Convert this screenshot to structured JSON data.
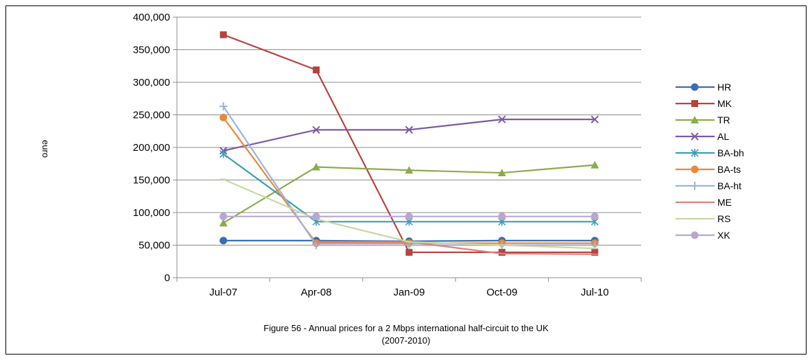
{
  "chart_data": {
    "type": "line",
    "ylabel": "euro",
    "xlabel": "",
    "ylim": [
      0,
      400000
    ],
    "ytick_step": 50000,
    "ytick_labels": [
      "0",
      "50,000",
      "100,000",
      "150,000",
      "200,000",
      "250,000",
      "300,000",
      "350,000",
      "400,000"
    ],
    "categories": [
      "Jul-07",
      "Apr-08",
      "Jan-09",
      "Oct-09",
      "Jul-10"
    ],
    "grid": "horizontal",
    "legend_position": "right",
    "series": [
      {
        "name": "HR",
        "color": "#3a6fb0",
        "marker": "circle",
        "values": [
          57000,
          57000,
          56000,
          57000,
          57000
        ]
      },
      {
        "name": "MK",
        "color": "#b5433f",
        "marker": "square",
        "values": [
          373000,
          319000,
          39000,
          39000,
          39000
        ]
      },
      {
        "name": "TR",
        "color": "#8aac4a",
        "marker": "triangle",
        "values": [
          84000,
          170000,
          165000,
          161000,
          173000
        ]
      },
      {
        "name": "AL",
        "color": "#7b5aa0",
        "marker": "x",
        "values": [
          195000,
          227000,
          227000,
          243000,
          243000
        ]
      },
      {
        "name": "BA-bh",
        "color": "#3b9db3",
        "marker": "star",
        "values": [
          190000,
          86000,
          86000,
          86000,
          86000
        ]
      },
      {
        "name": "BA-ts",
        "color": "#e8883a",
        "marker": "circle",
        "values": [
          246000,
          53000,
          53000,
          53000,
          53000
        ]
      },
      {
        "name": "BA-ht",
        "color": "#9cb3de",
        "marker": "plus",
        "values": [
          263000,
          50000,
          50000,
          50000,
          50000
        ]
      },
      {
        "name": "ME",
        "color": "#e37f7c",
        "marker": "dash",
        "values": [
          null,
          55000,
          55000,
          37000,
          36000
        ]
      },
      {
        "name": "RS",
        "color": "#c6d9a1",
        "marker": "dash",
        "values": [
          151000,
          90000,
          55000,
          50000,
          45000
        ]
      },
      {
        "name": "XK",
        "color": "#b9a7d2",
        "marker": "circle",
        "values": [
          94000,
          94000,
          94000,
          94000,
          94000
        ]
      }
    ]
  },
  "caption": {
    "line1": "Figure 56 - Annual prices for a 2 Mbps international half-circuit to the UK",
    "line2": "(2007-2010)"
  }
}
